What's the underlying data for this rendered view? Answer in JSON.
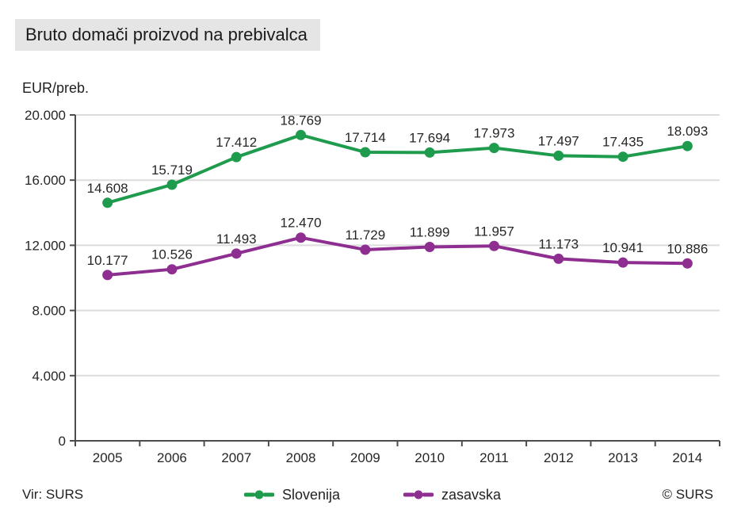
{
  "title": "Bruto domači proizvod na prebivalca",
  "unit_label": "EUR/preb.",
  "footer": {
    "source": "Vir: SURS",
    "copyright": "© SURS"
  },
  "chart_data": {
    "type": "line",
    "title": "Bruto domači proizvod na prebivalca",
    "ylabel": "EUR/preb.",
    "xlabel": "",
    "categories": [
      "2005",
      "2006",
      "2007",
      "2008",
      "2009",
      "2010",
      "2011",
      "2012",
      "2013",
      "2014"
    ],
    "series": [
      {
        "name": "Slovenija",
        "color": "#1e9b4c",
        "values": [
          14608,
          15719,
          17412,
          18769,
          17714,
          17694,
          17973,
          17497,
          17435,
          18093
        ],
        "labels": [
          "14.608",
          "15.719",
          "17.412",
          "18.769",
          "17.714",
          "17.694",
          "17.973",
          "17.497",
          "17.435",
          "18.093"
        ]
      },
      {
        "name": "zasavska",
        "color": "#8d2e90",
        "values": [
          10177,
          10526,
          11493,
          12470,
          11729,
          11899,
          11957,
          11173,
          10941,
          10886
        ],
        "labels": [
          "10.177",
          "10.526",
          "11.493",
          "12.470",
          "11.729",
          "11.899",
          "11.957",
          "11.173",
          "10.941",
          "10.886"
        ]
      }
    ],
    "ylim": [
      0,
      20000
    ],
    "yticks": [
      {
        "value": 20000,
        "label": "20.000"
      },
      {
        "value": 16000,
        "label": "16.000"
      },
      {
        "value": 12000,
        "label": "12.000"
      },
      {
        "value": 8000,
        "label": "8.000"
      },
      {
        "value": 4000,
        "label": "4.000"
      },
      {
        "value": 0,
        "label": "0"
      }
    ],
    "grid": true,
    "legend_position": "bottom",
    "marker": "circle",
    "data_labels": true,
    "grid_color": "#dcdcdc",
    "axis_color": "#4d4d4d",
    "text_color": "#262626"
  }
}
